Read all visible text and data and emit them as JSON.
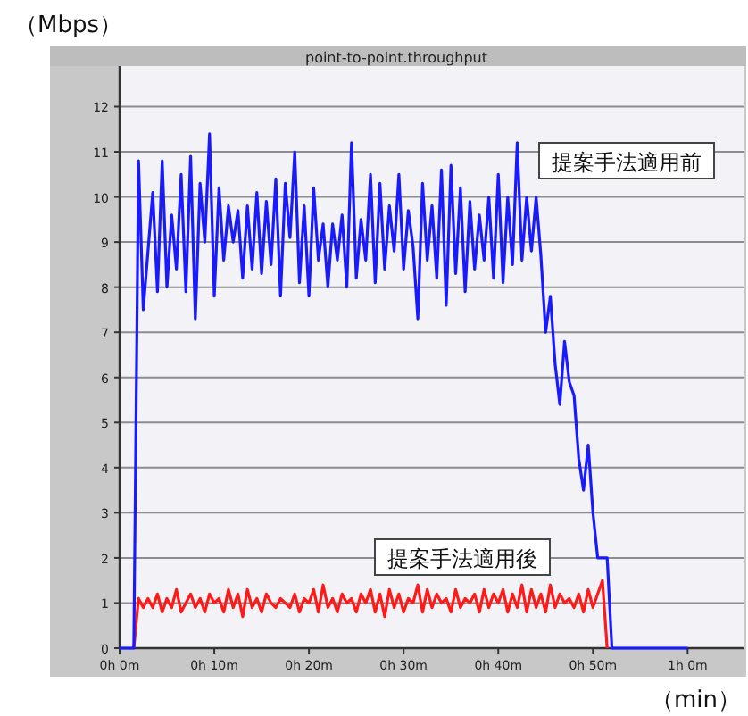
{
  "chart_data": {
    "type": "line",
    "title": "point-to-point.throughput",
    "xlabel": "（min）",
    "ylabel": "（Mbps）",
    "categories": [
      "0h 0m",
      null,
      null,
      null,
      null,
      null,
      null,
      null,
      null,
      null,
      null,
      null,
      null,
      null,
      null,
      null,
      null,
      null,
      null,
      null,
      "0h 10m",
      null,
      null,
      null,
      null,
      null,
      null,
      null,
      null,
      null,
      null,
      null,
      null,
      null,
      null,
      null,
      null,
      null,
      null,
      null,
      "0h 20m",
      null,
      null,
      null,
      null,
      null,
      null,
      null,
      null,
      null,
      null,
      null,
      null,
      null,
      null,
      null,
      null,
      null,
      null,
      null,
      "0h 30m",
      null,
      null,
      null,
      null,
      null,
      null,
      null,
      null,
      null,
      null,
      null,
      null,
      null,
      null,
      null,
      null,
      null,
      null,
      null,
      "0h 40m",
      null,
      null,
      null,
      null,
      null,
      null,
      null,
      null,
      null,
      null,
      null,
      null,
      null,
      null,
      null,
      null,
      null,
      null,
      null,
      "0h 50m",
      null,
      null,
      null,
      null,
      null,
      null,
      null,
      null,
      null,
      null,
      null,
      null,
      null,
      null,
      null,
      null,
      null,
      null,
      null,
      "1h 0m",
      null,
      null,
      null,
      null,
      null,
      null,
      null,
      null,
      null,
      null,
      null,
      null
    ],
    "ylim": [
      0,
      12.9
    ],
    "yticks": [
      0,
      1,
      2,
      3,
      4,
      5,
      6,
      7,
      8,
      9,
      10,
      11,
      12
    ],
    "grid": "y",
    "legend": false,
    "marker": "none",
    "line_style": "solid",
    "series": [
      {
        "name": "提案手法適用前",
        "color": "#1a1aff",
        "values": [
          0,
          0,
          0,
          0,
          10.8,
          7.5,
          8.8,
          10.1,
          7.9,
          10.8,
          8.0,
          9.6,
          8.4,
          10.5,
          7.9,
          10.9,
          7.3,
          10.3,
          9.0,
          11.4,
          7.8,
          10.2,
          8.6,
          9.8,
          9.0,
          9.7,
          8.2,
          9.8,
          8.4,
          10.1,
          8.3,
          9.9,
          8.5,
          10.4,
          7.8,
          10.3,
          9.1,
          11.0,
          8.1,
          9.8,
          7.8,
          10.2,
          8.6,
          9.4,
          8.0,
          9.4,
          8.6,
          9.6,
          8.0,
          11.2,
          8.2,
          9.5,
          8.6,
          10.5,
          8.1,
          10.3,
          8.4,
          9.8,
          8.8,
          10.5,
          8.4,
          9.7,
          8.9,
          7.3,
          10.3,
          8.6,
          9.8,
          8.2,
          10.6,
          7.6,
          10.7,
          8.3,
          10.2,
          7.9,
          9.9,
          8.4,
          9.6,
          8.6,
          10.0,
          8.2,
          10.5,
          8.1,
          10.0,
          8.5,
          11.2,
          8.6,
          10.0,
          8.8,
          10.0,
          8.7,
          7.0,
          7.8,
          6.3,
          5.4,
          6.8,
          5.9,
          5.6,
          4.2,
          3.5,
          4.5,
          3.0,
          2.0,
          2.0,
          2.0,
          0,
          0,
          0,
          0,
          0,
          0,
          0,
          0,
          0,
          0,
          0,
          0,
          0,
          0,
          0,
          0,
          0,
          null,
          null,
          null,
          null,
          null,
          null,
          null,
          null,
          null,
          null,
          null,
          null
        ]
      },
      {
        "name": "提案手法適用後",
        "color": "#ff1a1a",
        "values": [
          null,
          null,
          null,
          0,
          1.1,
          0.9,
          1.1,
          0.9,
          1.2,
          0.8,
          1.1,
          0.9,
          1.3,
          0.8,
          1.0,
          1.2,
          0.9,
          1.1,
          0.8,
          1.2,
          1.0,
          1.1,
          0.8,
          1.3,
          0.9,
          1.2,
          0.7,
          1.3,
          0.9,
          1.1,
          0.8,
          1.2,
          1.0,
          0.9,
          1.1,
          1.0,
          0.9,
          1.2,
          0.8,
          1.1,
          1.0,
          1.3,
          0.8,
          1.4,
          0.9,
          1.1,
          0.8,
          1.2,
          1.0,
          1.1,
          0.8,
          1.2,
          1.0,
          1.3,
          0.8,
          1.2,
          0.7,
          1.3,
          0.9,
          1.2,
          0.8,
          1.1,
          1.0,
          1.4,
          0.8,
          1.3,
          0.9,
          1.2,
          1.0,
          1.1,
          0.8,
          1.3,
          0.9,
          1.1,
          1.0,
          1.2,
          0.8,
          1.3,
          0.9,
          1.2,
          1.0,
          1.3,
          0.8,
          1.2,
          0.9,
          1.4,
          0.8,
          1.3,
          0.9,
          1.2,
          0.8,
          1.4,
          0.9,
          1.2,
          1.0,
          1.1,
          0.9,
          1.2,
          0.8,
          1.3,
          0.9,
          1.2,
          1.5,
          0,
          null,
          null,
          null,
          null,
          null,
          null,
          null,
          null,
          null,
          null,
          null,
          null,
          null,
          null,
          null,
          null,
          null,
          null,
          null,
          null,
          null,
          null,
          null,
          null,
          null,
          null,
          null,
          null,
          null
        ]
      }
    ]
  }
}
